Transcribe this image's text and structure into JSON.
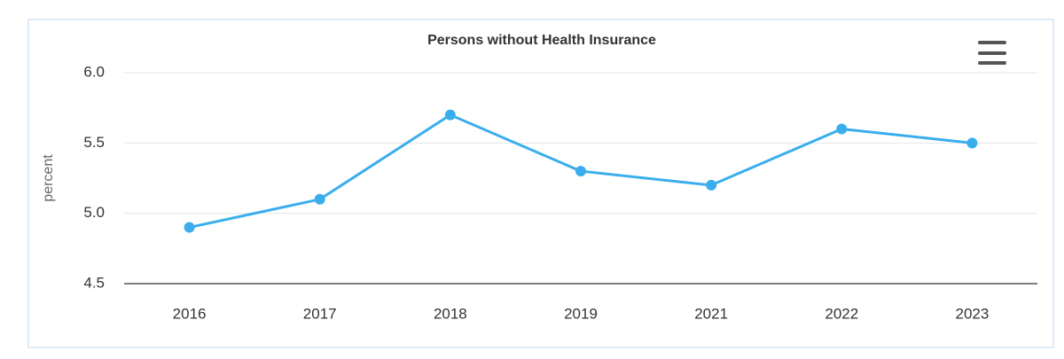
{
  "chart_data": {
    "type": "line",
    "title": "Persons without Health Insurance",
    "y_label": "percent",
    "categories": [
      "2016",
      "2017",
      "2018",
      "2019",
      "2021",
      "2022",
      "2023"
    ],
    "values": [
      4.9,
      5.1,
      5.7,
      5.3,
      5.2,
      5.6,
      5.5
    ],
    "color": "#3aaeed",
    "ylim": [
      4.5,
      6.0
    ],
    "yticks": [
      4.5,
      {
        "value": 5,
        "label": "5.0"
      },
      5.5,
      {
        "value": 6,
        "label": "6.0"
      }
    ],
    "grid": true
  }
}
